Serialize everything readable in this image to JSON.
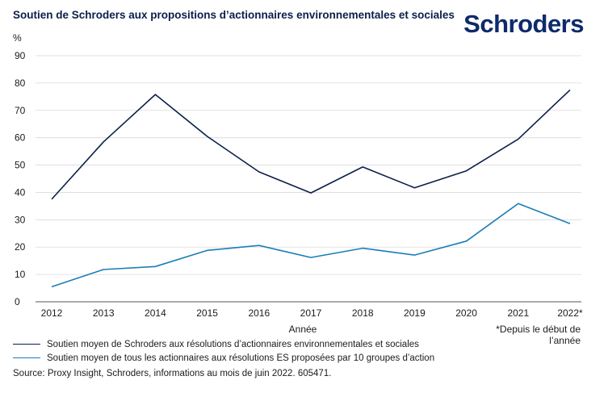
{
  "header": {
    "title": "Soutien de Schroders aux propositions d’actionnaires environnementales et sociales",
    "logo_text": "Schroders"
  },
  "chart_data": {
    "type": "line",
    "title": "Soutien de Schroders aux propositions d’actionnaires environnementales et sociales",
    "xlabel": "Année",
    "ylabel": "%",
    "ylim": [
      0,
      90
    ],
    "yticks": [
      0,
      10,
      20,
      30,
      40,
      50,
      60,
      70,
      80,
      90
    ],
    "categories": [
      "2012",
      "2013",
      "2014",
      "2015",
      "2016",
      "2017",
      "2018",
      "2019",
      "2020",
      "2021",
      "2022*"
    ],
    "grid": true,
    "series": [
      {
        "name": "Soutien moyen de Schroders aux résolutions d’actionnaires environnementales et sociales",
        "color": "#0b1f4a",
        "values": [
          37.5,
          58.5,
          75.8,
          60.5,
          47.5,
          39.8,
          49.3,
          41.7,
          47.9,
          59.5,
          77.5
        ]
      },
      {
        "name": "Soutien moyen de tous les actionnaires aux résolutions ES proposées par 10 groupes d’action",
        "color": "#1a7db8",
        "values": [
          5.5,
          11.8,
          12.9,
          18.8,
          20.6,
          16.2,
          19.6,
          17.1,
          22.2,
          35.9,
          28.6
        ]
      }
    ],
    "footnote": "*Depuis le début de l’année"
  },
  "source": "Source: Proxy Insight, Schroders, informations au mois de juin 2022. 605471."
}
